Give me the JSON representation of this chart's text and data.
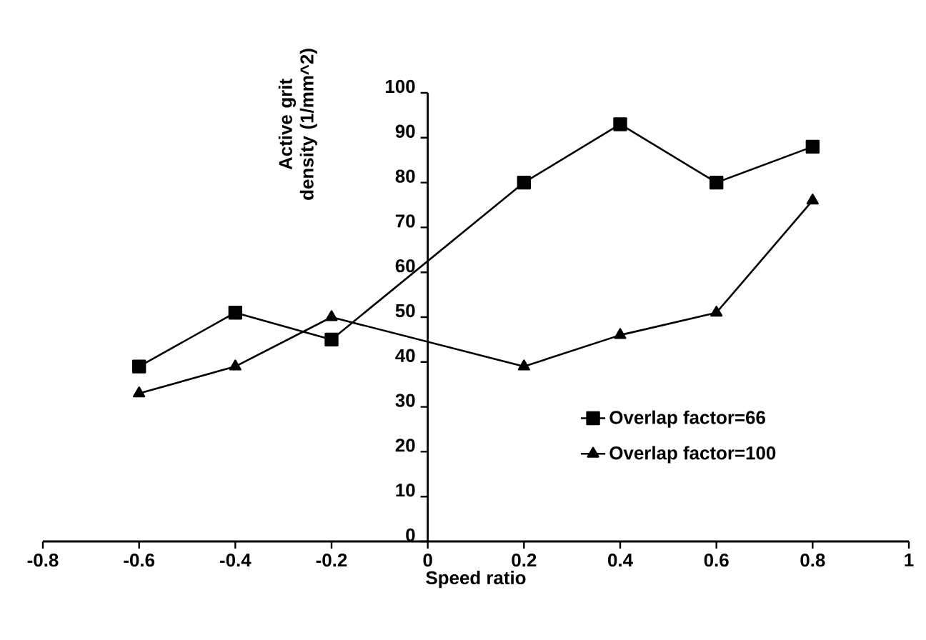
{
  "chart_data": {
    "type": "line",
    "xlabel": "Speed ratio",
    "ylabel": "Active grit density (1/mm^2)",
    "x": [
      -0.6,
      -0.4,
      -0.2,
      0.2,
      0.4,
      0.6,
      0.8
    ],
    "series": [
      {
        "name": "Overlap factor=66",
        "color": "#000000",
        "marker": "square",
        "values": [
          39,
          51,
          45,
          80,
          93,
          80,
          88
        ]
      },
      {
        "name": "Overlap factor=100",
        "color": "#000000",
        "marker": "triangle",
        "values": [
          33,
          39,
          50,
          39,
          46,
          51,
          76
        ]
      }
    ],
    "xlim": [
      -0.8,
      1
    ],
    "ylim": [
      0,
      100
    ],
    "xticks": [
      -0.8,
      -0.6,
      -0.4,
      -0.2,
      0,
      0.2,
      0.4,
      0.6,
      0.8,
      1
    ],
    "yticks": [
      0,
      10,
      20,
      30,
      40,
      50,
      60,
      70,
      80,
      90,
      100
    ],
    "legend": "right"
  }
}
